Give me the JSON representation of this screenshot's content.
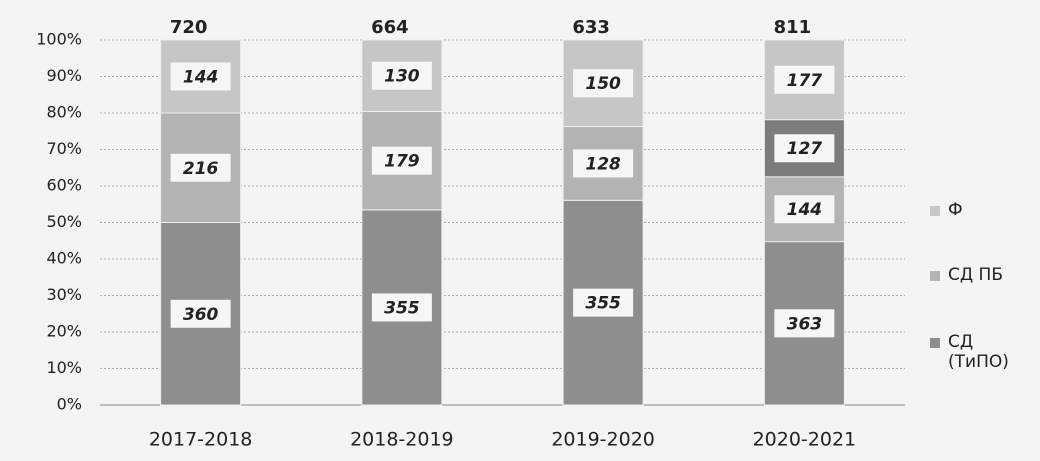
{
  "chart_data": {
    "type": "stacked-percent-bar",
    "categories": [
      "2017-2018",
      "2018-2019",
      "2019-2020",
      "2020-2021"
    ],
    "totals": [
      720,
      664,
      633,
      811
    ],
    "series": [
      {
        "name": "СД (ТиПО)",
        "color": "#8e8e8e",
        "values": [
          360,
          355,
          355,
          363
        ]
      },
      {
        "name": "СД ПБ",
        "color": "#b3b3b3",
        "values": [
          216,
          179,
          128,
          144
        ]
      },
      {
        "name": null,
        "color": "#7c7c7c",
        "values": [
          null,
          null,
          null,
          127
        ]
      },
      {
        "name": "Ф",
        "color": "#c6c6c6",
        "values": [
          144,
          130,
          150,
          177
        ]
      }
    ],
    "ylim": [
      0,
      100
    ],
    "yticks": [
      {
        "value": 0,
        "label": "0%"
      },
      {
        "value": 10,
        "label": "10%"
      },
      {
        "value": 20,
        "label": "20%"
      },
      {
        "value": 30,
        "label": "30%"
      },
      {
        "value": 40,
        "label": "40%"
      },
      {
        "value": 50,
        "label": "50%"
      },
      {
        "value": 60,
        "label": "60%"
      },
      {
        "value": 70,
        "label": "70%"
      },
      {
        "value": 80,
        "label": "80%"
      },
      {
        "value": 90,
        "label": "90%"
      },
      {
        "value": 100,
        "label": "100%"
      }
    ],
    "grid": true
  }
}
